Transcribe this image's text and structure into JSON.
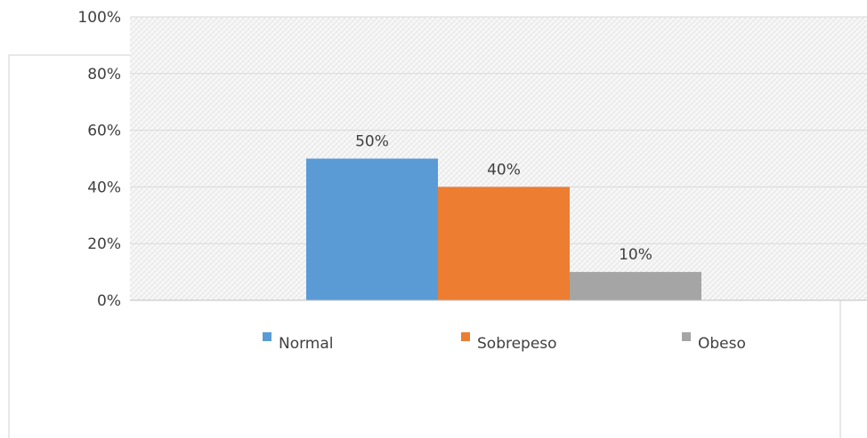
{
  "chart_data": {
    "type": "bar",
    "title": "",
    "xlabel": "",
    "ylabel": "",
    "categories": [
      "Normal",
      "Sobrepeso",
      "Obeso"
    ],
    "values": [
      50,
      40,
      10
    ],
    "data_labels": [
      "50%",
      "40%",
      "10%"
    ],
    "ylim": [
      0,
      100
    ],
    "yticks": [
      0,
      20,
      40,
      60,
      80,
      100
    ],
    "ytick_labels": [
      "0%",
      "20%",
      "40%",
      "60%",
      "80%",
      "100%"
    ],
    "colors": [
      "#5b9bd5",
      "#ed7d31",
      "#a5a5a5"
    ],
    "grid": true,
    "legend": {
      "position": "bottom",
      "entries": [
        "Normal",
        "Sobrepeso",
        "Obeso"
      ]
    }
  }
}
